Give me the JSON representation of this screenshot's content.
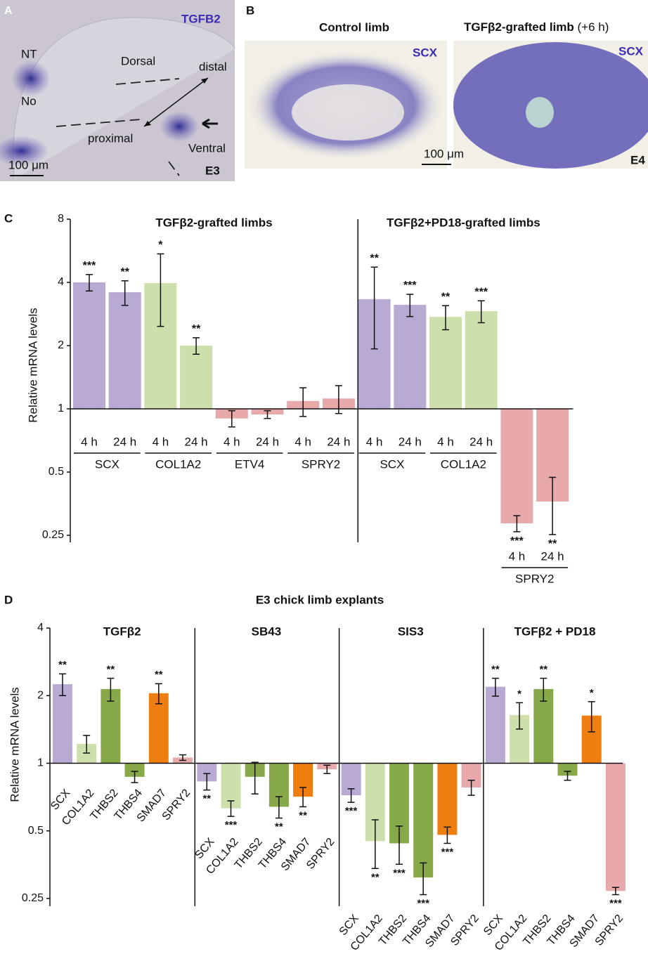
{
  "panel_a": {
    "letter": "A",
    "gene": "TGFB2",
    "nt": "NT",
    "no": "No",
    "dorsal": "Dorsal",
    "distal": "distal",
    "proximal": "proximal",
    "ventral": "Ventral",
    "scale": "100 μm",
    "stage": "E3"
  },
  "panel_b": {
    "letter": "B",
    "left_title": "Control limb",
    "right_title": "TGFβ2-grafted  limb",
    "right_title_note": "(+6 h)",
    "left_gene": "SCX",
    "right_gene": "SCX",
    "scale": "100 μm",
    "stage": "E4"
  },
  "chart_data": [
    {
      "type": "bar",
      "panel": "C",
      "y_label": "Relative mRNA levels",
      "log_scale": true,
      "log_base": 2,
      "bar_origin": 1,
      "ylim": [
        0.25,
        8
      ],
      "yticks": [
        0.25,
        0.5,
        1,
        2,
        4,
        8
      ],
      "groups": [
        {
          "title": "TGFβ2-grafted limbs",
          "genes": [
            {
              "name": "SCX",
              "color": "#b9aad3",
              "times": [
                "4 h",
                "24 h"
              ],
              "values": [
                4.0,
                3.59
              ],
              "errors": [
                0.36,
                0.48
              ],
              "significance": [
                "***",
                "**"
              ]
            },
            {
              "name": "COL1A2",
              "color": "#cde0ab",
              "times": [
                "4 h",
                "24 h"
              ],
              "values": [
                3.97,
                2.0
              ],
              "errors": [
                1.5,
                0.18
              ],
              "significance": [
                "*",
                "**"
              ]
            },
            {
              "name": "ETV4",
              "color": "#e8a9aa",
              "times": [
                "4 h",
                "24 h"
              ],
              "values": [
                0.9,
                0.94
              ],
              "errors": [
                0.08,
                0.04
              ],
              "significance": [
                null,
                null
              ]
            },
            {
              "name": "SPRY2",
              "color": "#e8a9aa",
              "times": [
                "4 h",
                "24 h"
              ],
              "values": [
                1.09,
                1.12
              ],
              "errors": [
                0.17,
                0.17
              ],
              "significance": [
                null,
                null
              ]
            }
          ]
        },
        {
          "title": "TGFβ2+PD18-grafted limbs",
          "genes": [
            {
              "name": "SCX",
              "color": "#b9aad3",
              "times": [
                "4 h",
                "24 h"
              ],
              "values": [
                3.33,
                3.13
              ],
              "errors": [
                1.4,
                0.38
              ],
              "significance": [
                "**",
                "***"
              ]
            },
            {
              "name": "COL1A2",
              "color": "#cde0ab",
              "times": [
                "4 h",
                "24 h"
              ],
              "values": [
                2.74,
                2.92
              ],
              "errors": [
                0.36,
                0.35
              ],
              "significance": [
                "**",
                "***"
              ]
            },
            {
              "name": "SPRY2",
              "color": "#e8a9aa",
              "times": [
                "4 h",
                "24 h"
              ],
              "values": [
                0.285,
                0.362
              ],
              "errors": [
                0.025,
                0.11
              ],
              "significance": [
                "***",
                "**"
              ]
            }
          ]
        }
      ]
    },
    {
      "type": "bar",
      "panel": "D",
      "title": "E3 chick limb explants",
      "y_label": "Relative mRNA levels",
      "log_scale": true,
      "log_base": 2,
      "bar_origin": 1,
      "ylim": [
        0.25,
        4
      ],
      "yticks": [
        0.25,
        0.5,
        1,
        2,
        4
      ],
      "groups": [
        {
          "title": "TGFβ2",
          "categories": [
            "SCX",
            "COL1A2",
            "THBS2",
            "THBS4",
            "SMAD7",
            "SPRY2"
          ],
          "colors": [
            "#b9aad3",
            "#cde0ab",
            "#88a94a",
            "#88a94a",
            "#ef7e10",
            "#e8a9aa"
          ],
          "values": [
            2.25,
            1.22,
            2.14,
            0.87,
            2.05,
            1.06
          ],
          "errors": [
            0.25,
            0.11,
            0.25,
            0.05,
            0.21,
            0.03
          ],
          "significance": [
            "**",
            null,
            "**",
            null,
            "**",
            null
          ]
        },
        {
          "title": "SB43",
          "categories": [
            "SCX",
            "COL1A2",
            "THBS2",
            "THBS4",
            "SMAD7",
            "SPRY2"
          ],
          "colors": [
            "#b9aad3",
            "#cde0ab",
            "#88a94a",
            "#88a94a",
            "#ef7e10",
            "#e8a9aa"
          ],
          "values": [
            0.83,
            0.63,
            0.87,
            0.64,
            0.71,
            0.94
          ],
          "errors": [
            0.07,
            0.05,
            0.14,
            0.07,
            0.07,
            0.04
          ],
          "significance": [
            "**",
            "***",
            null,
            "**",
            "**",
            null
          ]
        },
        {
          "title": "SIS3",
          "categories": [
            "SCX",
            "COL1A2",
            "THBS2",
            "THBS4",
            "SMAD7",
            "SPRY2"
          ],
          "colors": [
            "#b9aad3",
            "#cde0ab",
            "#88a94a",
            "#88a94a",
            "#ef7e10",
            "#e8a9aa"
          ],
          "values": [
            0.72,
            0.45,
            0.44,
            0.31,
            0.48,
            0.78
          ],
          "errors": [
            0.05,
            0.11,
            0.085,
            0.05,
            0.04,
            0.06
          ],
          "significance": [
            "***",
            "**",
            "***",
            "***",
            "***",
            null
          ]
        },
        {
          "title": "TGFβ2 + PD18",
          "categories": [
            "SCX",
            "COL1A2",
            "THBS2",
            "THBS4",
            "SMAD7",
            "SPRY2"
          ],
          "colors": [
            "#b9aad3",
            "#cde0ab",
            "#88a94a",
            "#88a94a",
            "#ef7e10",
            "#e8a9aa"
          ],
          "values": [
            2.19,
            1.64,
            2.14,
            0.88,
            1.63,
            0.27
          ],
          "errors": [
            0.2,
            0.22,
            0.25,
            0.04,
            0.25,
            0.01
          ],
          "significance": [
            "**",
            "*",
            "**",
            null,
            "*",
            "***"
          ]
        }
      ]
    }
  ]
}
